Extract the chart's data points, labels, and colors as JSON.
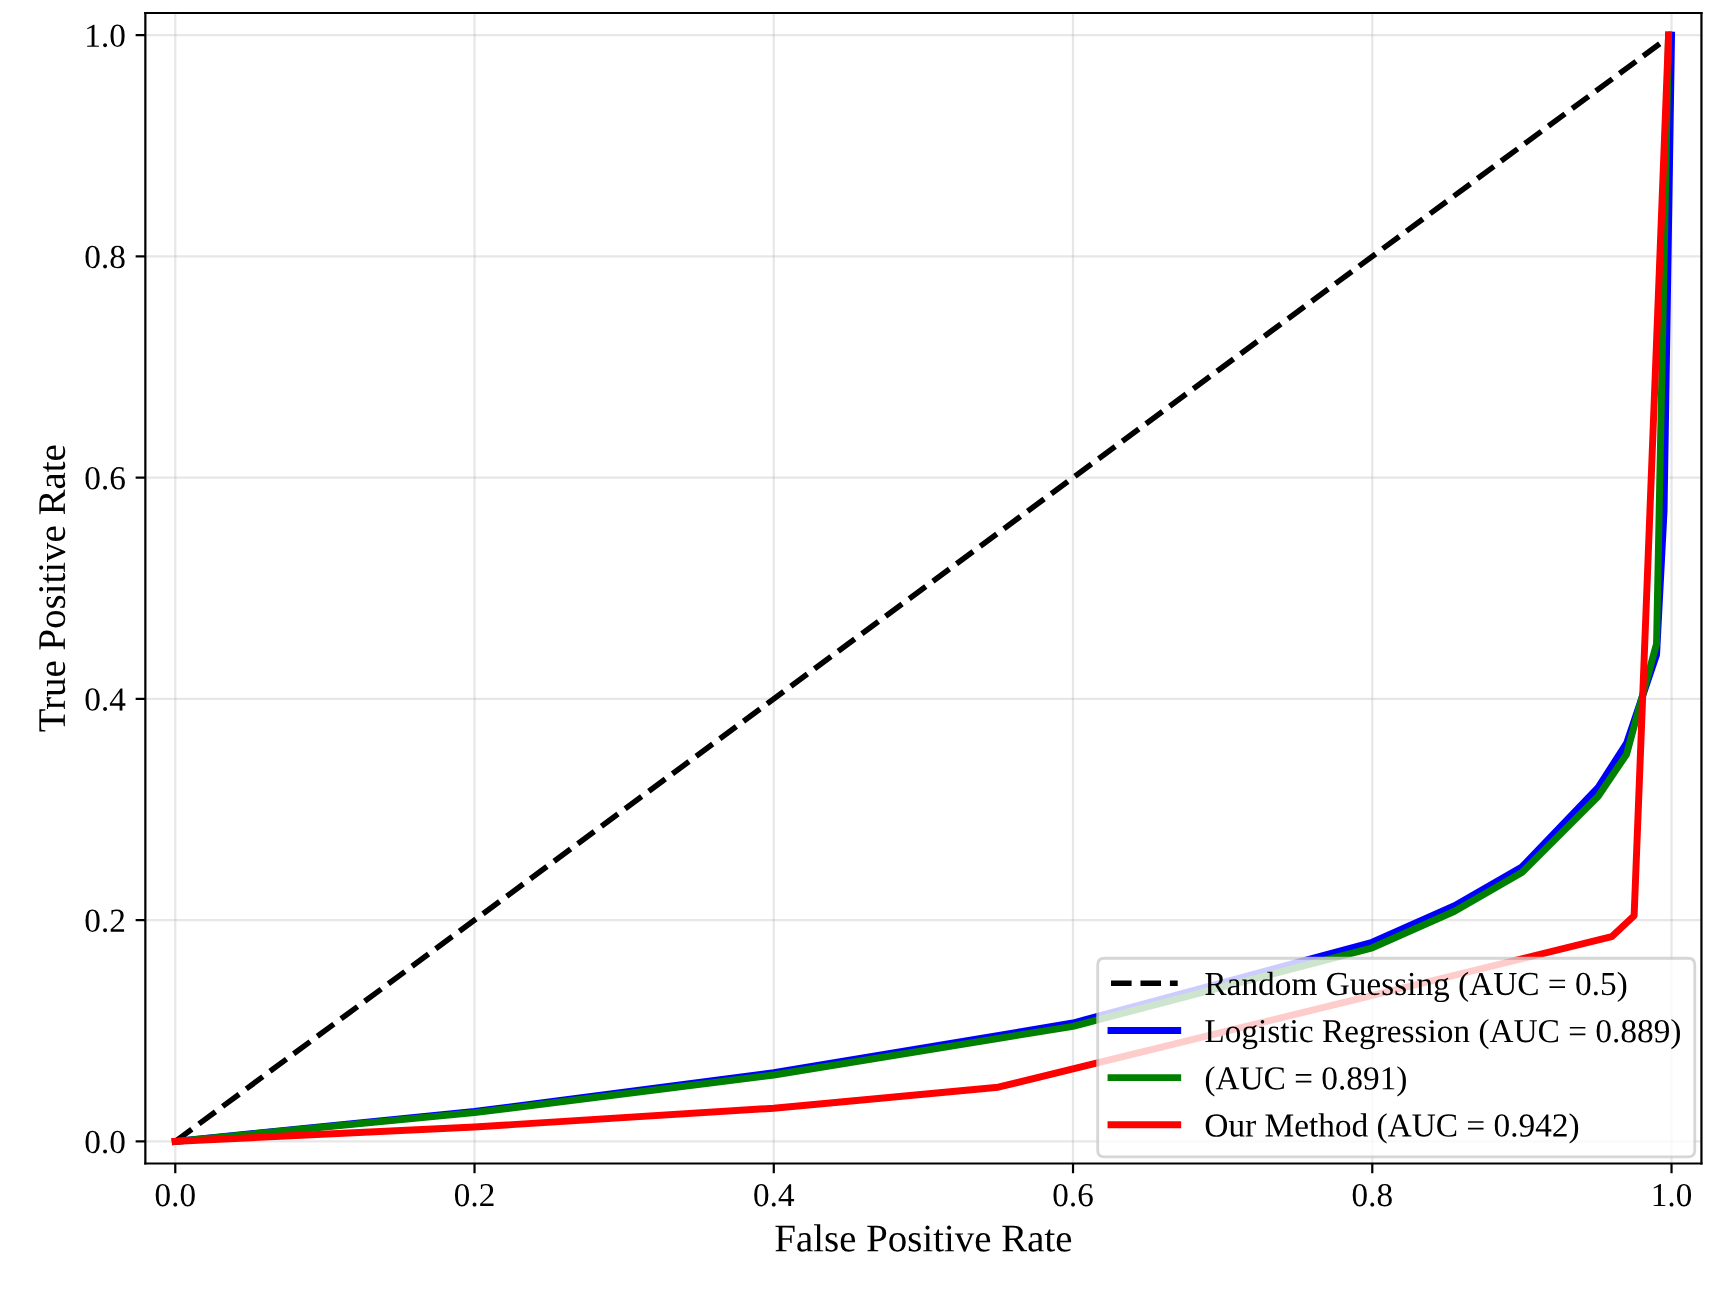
{
  "chart_data": {
    "type": "line",
    "xlabel": "False Positive Rate",
    "ylabel": "True Positive Rate",
    "xlim": [
      -0.02,
      1.02
    ],
    "ylim": [
      -0.02,
      1.02
    ],
    "xticks": [
      {
        "value": 0,
        "label": "0.0"
      },
      0.2,
      0.4,
      0.6,
      0.8,
      {
        "value": 1,
        "label": "1.0"
      }
    ],
    "yticks": [
      {
        "value": 0,
        "label": "0.0"
      },
      0.2,
      0.4,
      0.6,
      0.8,
      {
        "value": 1,
        "label": "1.0"
      }
    ],
    "grid": true,
    "legend": "bottom right",
    "series": [
      {
        "name": "Random Guessing (AUC = 0.5)",
        "color": "#000000",
        "line_style": "dashed",
        "x": [
          0,
          1
        ],
        "values": [
          0,
          1
        ]
      },
      {
        "name": "Logistic Regression (AUC = 0.889)",
        "color": "#0000ff",
        "x": [
          0,
          0.2,
          0.4,
          0.6,
          0.8,
          0.855,
          0.9,
          0.951,
          0.97,
          0.98,
          0.99,
          0.995,
          1.0
        ],
        "values": [
          0,
          0.027,
          0.062,
          0.107,
          0.18,
          0.213,
          0.248,
          0.32,
          0.36,
          0.4,
          0.44,
          0.57,
          1.0
        ]
      },
      {
        "name": "(AUC = 0.891)",
        "color": "#008000",
        "x": [
          0,
          0.2,
          0.4,
          0.6,
          0.8,
          0.855,
          0.9,
          0.951,
          0.97,
          0.98,
          0.99,
          0.998
        ],
        "values": [
          0,
          0.026,
          0.06,
          0.104,
          0.175,
          0.208,
          0.243,
          0.312,
          0.35,
          0.4,
          0.45,
          1.0
        ]
      },
      {
        "name": "Our Method (AUC = 0.942)",
        "color": "#ff0000",
        "x": [
          0,
          0.2,
          0.4,
          0.55,
          0.96,
          0.975,
          0.998
        ],
        "values": [
          0,
          0.013,
          0.03,
          0.049,
          0.185,
          0.204,
          1.0
        ]
      }
    ]
  }
}
